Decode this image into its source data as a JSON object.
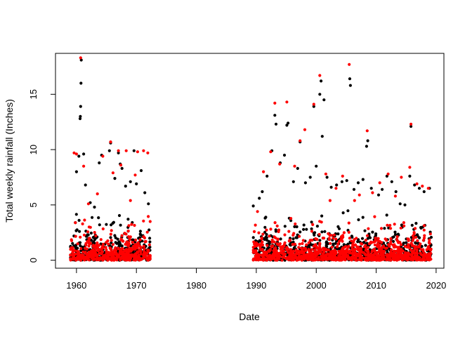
{
  "chart_data": {
    "type": "scatter",
    "title": "",
    "xlabel": "Date",
    "ylabel": "Total weekly rainfall (Inches)",
    "xlim": [
      1956.5,
      2021.3
    ],
    "ylim": [
      -0.72,
      18.7
    ],
    "x_ticks": [
      1960,
      1970,
      1980,
      1990,
      2000,
      2010,
      2020
    ],
    "y_ticks": [
      0,
      5,
      10,
      15
    ],
    "x_tick_labels": [
      "1960",
      "1970",
      "1980",
      "1990",
      "2000",
      "2010",
      "2020"
    ],
    "y_tick_labels": [
      "0",
      "5",
      "10",
      "15"
    ],
    "grid": false,
    "legend": "none",
    "colors": {
      "series_a": "#000000",
      "series_b": "#ff0000",
      "frame": "#000000"
    },
    "series": [
      {
        "color": "#000000",
        "points": [
          [
            1960.0,
            8.0
          ],
          [
            1960.4,
            9.4
          ],
          [
            1960.6,
            12.8
          ],
          [
            1960.65,
            13.0
          ],
          [
            1960.7,
            13.9
          ],
          [
            1960.75,
            16.0
          ],
          [
            1960.8,
            18.1
          ],
          [
            1961.2,
            9.6
          ],
          [
            1961.5,
            6.8
          ],
          [
            1962.3,
            5.2
          ],
          [
            1963.0,
            4.8
          ],
          [
            1963.8,
            8.8
          ],
          [
            1964.2,
            9.5
          ],
          [
            1965.5,
            9.9
          ],
          [
            1965.7,
            10.6
          ],
          [
            1966.4,
            7.4
          ],
          [
            1967.0,
            9.7
          ],
          [
            1967.3,
            8.7
          ],
          [
            1967.6,
            8.3
          ],
          [
            1968.2,
            6.7
          ],
          [
            1969.0,
            7.1
          ],
          [
            1969.6,
            9.9
          ],
          [
            1970.0,
            6.9
          ],
          [
            1970.8,
            8.1
          ],
          [
            1971.4,
            6.1
          ],
          [
            1972.0,
            5.1
          ],
          [
            1989.5,
            4.9
          ],
          [
            1990.5,
            5.6
          ],
          [
            1991.0,
            6.2
          ],
          [
            1991.8,
            7.6
          ],
          [
            1992.6,
            9.9
          ],
          [
            1993.1,
            13.1
          ],
          [
            1993.3,
            12.3
          ],
          [
            1994.0,
            8.8
          ],
          [
            1994.7,
            9.5
          ],
          [
            1995.1,
            12.2
          ],
          [
            1995.3,
            12.4
          ],
          [
            1996.2,
            7.1
          ],
          [
            1996.9,
            8.3
          ],
          [
            1997.3,
            10.7
          ],
          [
            1998.2,
            7.0
          ],
          [
            1999.0,
            7.5
          ],
          [
            1999.6,
            13.9
          ],
          [
            2000.0,
            8.5
          ],
          [
            2000.6,
            15.0
          ],
          [
            2000.8,
            16.2
          ],
          [
            2001.0,
            11.2
          ],
          [
            2001.3,
            14.5
          ],
          [
            2001.8,
            7.5
          ],
          [
            2002.5,
            6.6
          ],
          [
            2003.4,
            6.8
          ],
          [
            2004.3,
            7.1
          ],
          [
            2005.1,
            7.2
          ],
          [
            2005.6,
            16.4
          ],
          [
            2005.7,
            15.8
          ],
          [
            2006.3,
            6.4
          ],
          [
            2007.0,
            7.0
          ],
          [
            2007.8,
            7.3
          ],
          [
            2008.4,
            10.3
          ],
          [
            2008.6,
            10.8
          ],
          [
            2009.2,
            6.5
          ],
          [
            2010.4,
            5.9
          ],
          [
            2011.0,
            6.4
          ],
          [
            2011.8,
            7.6
          ],
          [
            2012.6,
            7.1
          ],
          [
            2013.3,
            6.2
          ],
          [
            2014.0,
            5.1
          ],
          [
            2014.8,
            5.0
          ],
          [
            2015.6,
            7.6
          ],
          [
            2015.8,
            12.1
          ],
          [
            2016.4,
            6.8
          ],
          [
            2017.2,
            6.5
          ],
          [
            2018.0,
            6.2
          ],
          [
            2018.9,
            6.5
          ]
        ]
      },
      {
        "color": "#ff0000",
        "points": [
          [
            1959.6,
            9.7
          ],
          [
            1960.0,
            9.6
          ],
          [
            1960.7,
            18.3
          ],
          [
            1961.2,
            8.5
          ],
          [
            1962.0,
            5.1
          ],
          [
            1963.5,
            6.0
          ],
          [
            1964.4,
            9.4
          ],
          [
            1965.7,
            10.7
          ],
          [
            1966.1,
            7.9
          ],
          [
            1967.0,
            9.9
          ],
          [
            1967.4,
            8.6
          ],
          [
            1968.3,
            9.9
          ],
          [
            1969.0,
            5.4
          ],
          [
            1969.8,
            7.7
          ],
          [
            1970.2,
            9.8
          ],
          [
            1971.2,
            9.9
          ],
          [
            1971.9,
            9.7
          ],
          [
            1972.3,
            3.5
          ],
          [
            1990.2,
            4.4
          ],
          [
            1991.2,
            8.0
          ],
          [
            1992.4,
            9.8
          ],
          [
            1993.1,
            14.2
          ],
          [
            1993.9,
            8.7
          ],
          [
            1995.1,
            14.3
          ],
          [
            1996.4,
            8.5
          ],
          [
            1997.3,
            10.8
          ],
          [
            1998.1,
            11.8
          ],
          [
            1999.6,
            14.1
          ],
          [
            2000.6,
            16.7
          ],
          [
            2001.6,
            7.8
          ],
          [
            2002.3,
            5.4
          ],
          [
            2003.3,
            6.5
          ],
          [
            2004.4,
            7.6
          ],
          [
            2005.5,
            17.7
          ],
          [
            2006.4,
            5.4
          ],
          [
            2007.2,
            5.9
          ],
          [
            2008.5,
            11.7
          ],
          [
            2009.4,
            6.1
          ],
          [
            2010.6,
            7.0
          ],
          [
            2012.0,
            7.8
          ],
          [
            2013.2,
            5.8
          ],
          [
            2014.2,
            7.5
          ],
          [
            2015.6,
            8.4
          ],
          [
            2015.8,
            12.3
          ],
          [
            2016.8,
            6.9
          ],
          [
            2017.7,
            6.7
          ],
          [
            2018.7,
            6.5
          ]
        ]
      }
    ],
    "dense_bands": [
      {
        "x_range": [
          1959.0,
          1972.3
        ],
        "y_max": 5.5
      },
      {
        "x_range": [
          1989.5,
          2019.2
        ],
        "y_max": 6.0
      }
    ]
  }
}
